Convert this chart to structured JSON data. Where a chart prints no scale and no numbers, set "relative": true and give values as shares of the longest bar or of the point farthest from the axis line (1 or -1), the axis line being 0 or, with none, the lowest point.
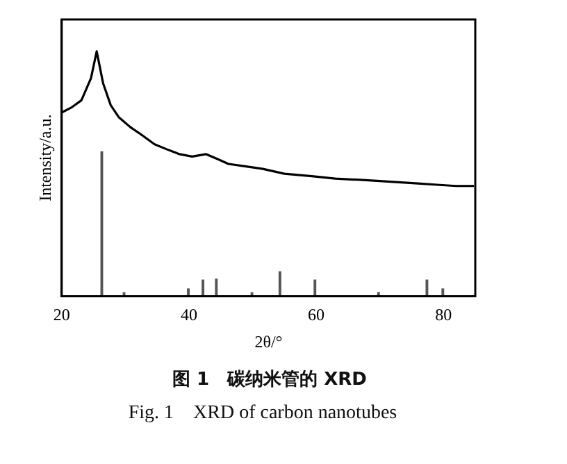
{
  "chart_data": {
    "type": "line",
    "relative": true,
    "xlabel": "2θ/°",
    "ylabel": "Intensity/a.u.",
    "xlim": [
      20,
      85
    ],
    "xticks": [
      20,
      40,
      60,
      80
    ],
    "grid": false,
    "legend": false,
    "marker": "none",
    "annotations": [
      "图 1　碳纳米管的 XRD",
      "Fig. 1　XRD of carbon nanotubes"
    ],
    "series": [
      {
        "color": "#000000",
        "x": [
          20,
          21.5,
          23.1,
          24.6,
          25.5,
          26.5,
          27.7,
          29,
          30.8,
          32.5,
          34.6,
          36.5,
          38.5,
          40.5,
          42.7,
          44.5,
          46.2,
          49,
          51.6,
          55,
          59.3,
          63,
          66.9,
          70,
          73,
          76,
          79,
          82,
          84.8
        ],
        "values": [
          0.75,
          0.77,
          0.8,
          0.89,
          1,
          0.87,
          0.78,
          0.73,
          0.69,
          0.66,
          0.62,
          0.6,
          0.58,
          0.57,
          0.58,
          0.56,
          0.54,
          0.53,
          0.52,
          0.5,
          0.49,
          0.48,
          0.475,
          0.47,
          0.465,
          0.46,
          0.455,
          0.45,
          0.45
        ]
      },
      {
        "type": "bar",
        "color": "#555555",
        "x": [
          26.3,
          29.8,
          39.9,
          42.2,
          44.3,
          49.9,
          54.3,
          59.8,
          69.8,
          77.4,
          79.9
        ],
        "values": [
          0.59,
          0.014,
          0.03,
          0.066,
          0.07,
          0.014,
          0.1,
          0.066,
          0.015,
          0.066,
          0.03
        ]
      }
    ]
  }
}
